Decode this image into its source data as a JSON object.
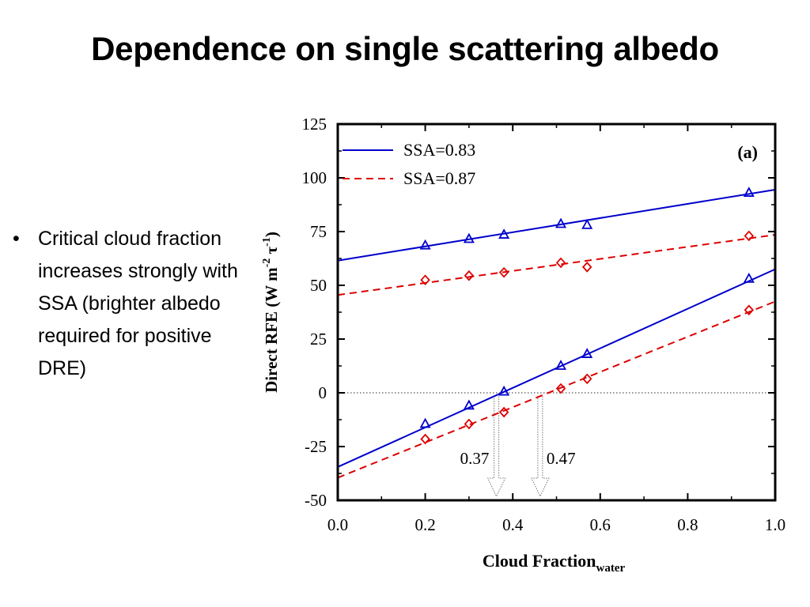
{
  "slide": {
    "title": "Dependence on single scattering albedo",
    "bullets": [
      {
        "marker": "•",
        "text": "Critical cloud fraction increases strongly with SSA (brighter albedo required for positive DRE)"
      }
    ]
  },
  "chart_data": {
    "type": "line",
    "panel_label": "(a)",
    "xlabel_main": "Cloud Fraction",
    "xlabel_sub": "water",
    "ylabel_parts": [
      "Direct RFE (W m",
      "-2",
      " τ",
      "-1",
      ")"
    ],
    "xlim": [
      0.0,
      1.0
    ],
    "ylim": [
      -50,
      125
    ],
    "xticks": [
      "0.0",
      "0.2",
      "0.4",
      "0.6",
      "0.8",
      "1.0"
    ],
    "yticks": [
      "125",
      "100",
      "75",
      "50",
      "25",
      "0",
      "-25",
      "-50"
    ],
    "xtick_values": [
      0.0,
      0.2,
      0.4,
      0.6,
      0.8,
      1.0
    ],
    "ytick_values": [
      125,
      100,
      75,
      50,
      25,
      0,
      -25,
      -50
    ],
    "zero_line": true,
    "legend_position": "top-left",
    "series": [
      {
        "name": "SSA=0.83",
        "color": "#0000cc",
        "dash": "solid",
        "marker": "triangle",
        "groups": [
          {
            "points": [
              [
                0.2,
                68.5
              ],
              [
                0.3,
                71.5
              ],
              [
                0.38,
                73.5
              ],
              [
                0.51,
                78.5
              ],
              [
                0.57,
                78.0
              ],
              [
                0.94,
                93.0
              ]
            ],
            "fit": [
              [
                0.0,
                61.5
              ],
              [
                1.0,
                94.5
              ]
            ]
          },
          {
            "points": [
              [
                0.2,
                -14.5
              ],
              [
                0.3,
                -6.0
              ],
              [
                0.38,
                0.5
              ],
              [
                0.51,
                12.5
              ],
              [
                0.57,
                18.0
              ],
              [
                0.94,
                53.0
              ]
            ],
            "fit": [
              [
                0.0,
                -34.5
              ],
              [
                1.0,
                57.5
              ]
            ]
          }
        ]
      },
      {
        "name": "SSA=0.87",
        "color": "#dd0000",
        "dash": "dashed",
        "marker": "diamond",
        "groups": [
          {
            "points": [
              [
                0.2,
                52.5
              ],
              [
                0.3,
                54.5
              ],
              [
                0.38,
                56.0
              ],
              [
                0.51,
                60.5
              ],
              [
                0.57,
                58.5
              ],
              [
                0.94,
                73.0
              ]
            ],
            "fit": [
              [
                0.0,
                45.5
              ],
              [
                1.0,
                73.5
              ]
            ]
          },
          {
            "points": [
              [
                0.2,
                -21.5
              ],
              [
                0.3,
                -14.5
              ],
              [
                0.38,
                -9.0
              ],
              [
                0.51,
                2.0
              ],
              [
                0.57,
                6.5
              ],
              [
                0.94,
                38.5
              ]
            ],
            "fit": [
              [
                0.0,
                -39.5
              ],
              [
                1.0,
                42.5
              ]
            ]
          }
        ]
      }
    ],
    "annotations": [
      {
        "text": "0.37",
        "x": 0.37
      },
      {
        "text": "0.47",
        "x": 0.47
      }
    ]
  }
}
